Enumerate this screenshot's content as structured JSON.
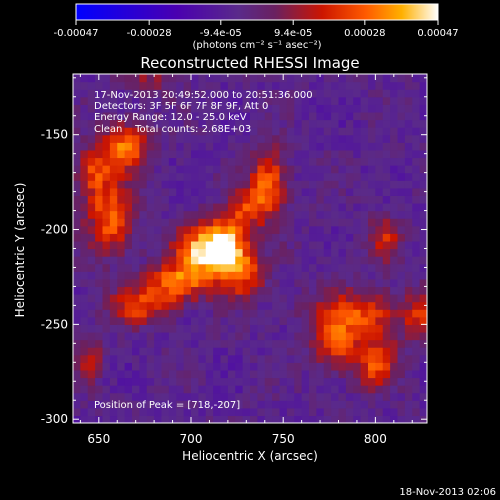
{
  "colorbar": {
    "tick_labels": [
      "-0.00047",
      "-0.00028",
      "-9.4e-05",
      "9.4e-05",
      "0.00028",
      "0.00047"
    ],
    "tick_values": [
      -0.00047,
      -0.00028,
      -9.4e-05,
      9.4e-05,
      0.00028,
      0.00047
    ],
    "range": [
      -0.00047,
      0.00047
    ],
    "units": "(photons cm⁻² s⁻¹ asec⁻²)"
  },
  "image_header": {
    "time_range": "17-Nov-2013 20:49:52.000 to 20:51:36.000",
    "detectors": "Detectors: 3F 5F 6F 7F 8F 9F, Att 0",
    "energy_range": "Energy Range: 12.0 - 25.0 keV",
    "clean_counts": "Clean    Total counts: 2.68E+03"
  },
  "peak_label": "Position of Peak = [718,-207]",
  "footer_timestamp": "18-Nov-2013 02:06",
  "chart_data": {
    "type": "heatmap",
    "title": "Reconstructed RHESSI Image",
    "xlabel": "Heliocentric X (arcsec)",
    "ylabel": "Heliocentric Y (arcsec)",
    "xlim": [
      636,
      828
    ],
    "ylim": [
      -302,
      -118
    ],
    "xticks": [
      650,
      700,
      750,
      800
    ],
    "yticks": [
      -150,
      -200,
      -250,
      -300
    ],
    "peak_position": [
      718,
      -207
    ],
    "sources": [
      {
        "x": 718,
        "y": -207,
        "sx": 9,
        "sy": 10,
        "amp": 0.00047
      },
      {
        "x": 704,
        "y": -212,
        "sx": 10,
        "sy": 9,
        "amp": 0.00036
      },
      {
        "x": 692,
        "y": -228,
        "sx": 12,
        "sy": 7,
        "amp": 0.00034
      },
      {
        "x": 727,
        "y": -223,
        "sx": 9,
        "sy": 9,
        "amp": 0.0003
      },
      {
        "x": 673,
        "y": -240,
        "sx": 12,
        "sy": 7,
        "amp": 0.00027
      },
      {
        "x": 742,
        "y": -176,
        "sx": 7,
        "sy": 13,
        "amp": 0.00036
      },
      {
        "x": 730,
        "y": -188,
        "sx": 6,
        "sy": 7,
        "amp": 0.00024
      },
      {
        "x": 664,
        "y": -156,
        "sx": 9,
        "sy": 9,
        "amp": 0.00036
      },
      {
        "x": 657,
        "y": -195,
        "sx": 9,
        "sy": 13,
        "amp": 0.00034
      },
      {
        "x": 647,
        "y": -170,
        "sx": 7,
        "sy": 10,
        "amp": 0.00026
      },
      {
        "x": 791,
        "y": -245,
        "sx": 18,
        "sy": 9,
        "amp": 0.00032
      },
      {
        "x": 800,
        "y": -270,
        "sx": 8,
        "sy": 9,
        "amp": 0.0003
      },
      {
        "x": 778,
        "y": -262,
        "sx": 8,
        "sy": 9,
        "amp": 0.00026
      },
      {
        "x": 805,
        "y": -205,
        "sx": 6,
        "sy": 8,
        "amp": 0.00022
      },
      {
        "x": 645,
        "y": -267,
        "sx": 5,
        "sy": 10,
        "amp": 0.00018
      },
      {
        "x": 678,
        "y": -120,
        "sx": 10,
        "sy": 6,
        "amp": 0.00014
      },
      {
        "x": 825,
        "y": -245,
        "sx": 6,
        "sy": 10,
        "amp": 0.0002
      }
    ]
  }
}
